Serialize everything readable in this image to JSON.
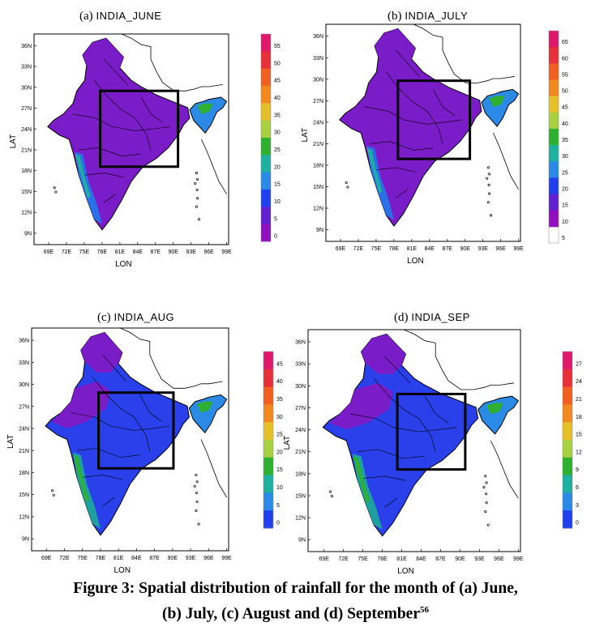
{
  "panels": [
    {
      "title_letter": "(a)",
      "title_name": "INDIA_JUNE",
      "colorbar_ticks": [
        "55",
        "50",
        "45",
        "40",
        "35",
        "30",
        "25",
        "20",
        "15",
        "10",
        "5",
        "0"
      ],
      "fill": "purple"
    },
    {
      "title_letter": "(b)",
      "title_name": "INDIA_JULY",
      "colorbar_ticks": [
        "65",
        "60",
        "55",
        "50",
        "45",
        "40",
        "35",
        "30",
        "25",
        "20",
        "15",
        "10",
        "5"
      ],
      "fill": "purple"
    },
    {
      "title_letter": "(c)",
      "title_name": "INDIA_AUG",
      "colorbar_ticks": [
        "45",
        "40",
        "35",
        "30",
        "25",
        "20",
        "15",
        "10",
        "5",
        "0"
      ],
      "fill": "blue"
    },
    {
      "title_letter": "(d)",
      "title_name": "INDIA_SEP",
      "colorbar_ticks": [
        "27",
        "24",
        "21",
        "18",
        "15",
        "12",
        "9",
        "6",
        "3",
        "0"
      ],
      "fill": "blue"
    }
  ],
  "axes": {
    "xlabel": "LON",
    "ylabel": "LAT",
    "x_ticks": [
      "69E",
      "72E",
      "75E",
      "78E",
      "81E",
      "84E",
      "87E",
      "90E",
      "93E",
      "96E",
      "99E"
    ],
    "y_ticks": [
      "36N",
      "33N",
      "30N",
      "27N",
      "24N",
      "21N",
      "18N",
      "15N",
      "12N",
      "9N"
    ]
  },
  "colorbar_colors": [
    "#e0186c",
    "#e8303a",
    "#f06020",
    "#f08a20",
    "#e6c02a",
    "#a8d040",
    "#30b030",
    "#20b0a0",
    "#2a8ae6",
    "#2040ee",
    "#6020d0",
    "#9010c0"
  ],
  "caption": {
    "line1": "Figure 3: Spatial distribution of rainfall for the month of (a) June,",
    "line2": "(b) July, (c) August and (d) September",
    "ref": "56"
  }
}
